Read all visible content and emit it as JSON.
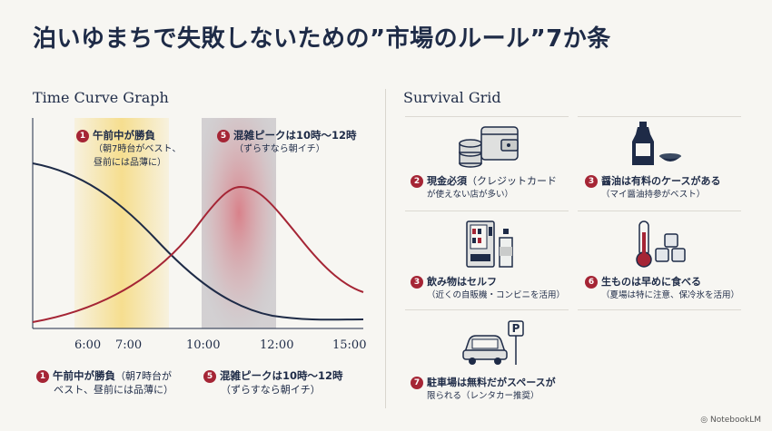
{
  "title": "泊いゆまちで失敗しないための”市場のルール”7か条",
  "left": {
    "heading": "Time Curve Graph",
    "top_notes": [
      {
        "num": "1",
        "head": "午前中が勝負",
        "sub1": "（朝7時台がベスト、",
        "sub2": "昼前には品薄に）"
      },
      {
        "num": "5",
        "head": "混雑ピークは10時〜12時",
        "sub1": "（ずらすなら朝イチ）",
        "sub2": ""
      }
    ],
    "ticks": [
      "6:00",
      "7:00",
      "10:00",
      "12:00",
      "15:00"
    ],
    "bottom_notes": [
      {
        "num": "1",
        "head": "午前中が勝負",
        "head_tail": "（朝7時台が",
        "sub": "ベスト、昼前には品薄に）"
      },
      {
        "num": "5",
        "head": "混雑ピークは10時〜12時",
        "head_tail": "",
        "sub": "（ずらすなら朝イチ）"
      }
    ],
    "colors": {
      "freshness": "#1e2b47",
      "crowd": "#a52535",
      "morning": "#f6d66e",
      "peak": "#c7c5c8"
    }
  },
  "right": {
    "heading": "Survival Grid",
    "cells": [
      {
        "num": "2",
        "icon": "coins-wallet-icon",
        "head": "現金必須",
        "head_tail": "（クレジットカード",
        "sub": "が使えない店が多い）"
      },
      {
        "num": "3",
        "icon": "soy-sauce-icon",
        "head": "醤油は有料のケースがある",
        "head_tail": "",
        "sub": "（マイ醤油持参がベスト）"
      },
      {
        "num": "3",
        "icon": "vending-machine-icon",
        "head": "飲み物はセルフ",
        "head_tail": "",
        "sub": "（近くの自販機・コンビニを活用）"
      },
      {
        "num": "6",
        "icon": "thermometer-ice-icon",
        "head": "生ものは早めに食べる",
        "head_tail": "",
        "sub": "（夏場は特に注意、保冷氷を活用）"
      },
      {
        "num": "7",
        "icon": "car-parking-icon",
        "head": "駐車場は無料だがスペースが",
        "head_tail": "",
        "sub": "限られる（レンタカー推奨）"
      }
    ]
  },
  "footer": "NotebookLM"
}
